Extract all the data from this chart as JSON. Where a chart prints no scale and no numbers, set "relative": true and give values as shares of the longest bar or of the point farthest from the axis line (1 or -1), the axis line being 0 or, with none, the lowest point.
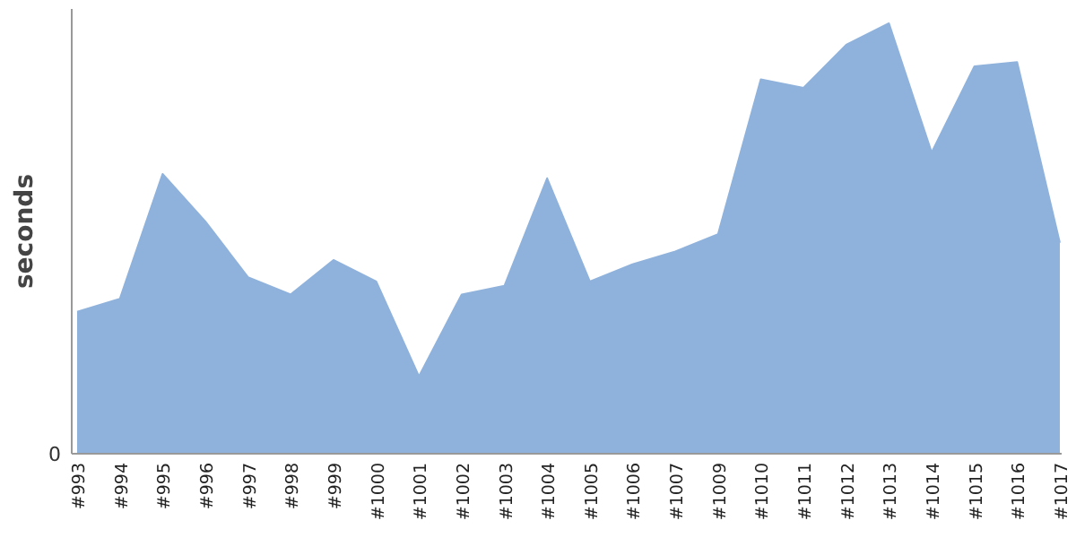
{
  "chart_data": {
    "type": "area",
    "ylabel": "seconds",
    "relative": true,
    "annotations": [
      "0"
    ],
    "categories": [
      "#993",
      "#994",
      "#995",
      "#996",
      "#997",
      "#998",
      "#999",
      "#1000",
      "#1001",
      "#1002",
      "#1003",
      "#1004",
      "#1005",
      "#1006",
      "#1007",
      "#1009",
      "#1010",
      "#1011",
      "#1012",
      "#1013",
      "#1014",
      "#1015",
      "#1016",
      "#1017"
    ],
    "series": [
      {
        "color": "#8fb2dc",
        "values": [
          0.33,
          0.36,
          0.65,
          0.54,
          0.41,
          0.37,
          0.45,
          0.4,
          0.18,
          0.37,
          0.39,
          0.64,
          0.4,
          0.44,
          0.47,
          0.51,
          0.87,
          0.85,
          0.95,
          1,
          0.7,
          0.9,
          0.91,
          0.49
        ]
      }
    ]
  }
}
